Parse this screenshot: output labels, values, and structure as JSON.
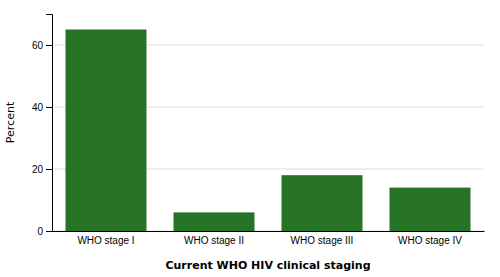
{
  "chart_data": {
    "type": "bar",
    "categories": [
      "WHO stage I",
      "WHO stage II",
      "WHO stage III",
      "WHO stage IV"
    ],
    "values": [
      65.0,
      6.0,
      18.0,
      14.0
    ],
    "color": "#267326",
    "xlabel": "Current WHO HIV clinical staging",
    "ylabel": "Percent",
    "ylim": [
      0,
      70
    ],
    "yticks": [
      0,
      20,
      40,
      60
    ],
    "grid": true
  }
}
